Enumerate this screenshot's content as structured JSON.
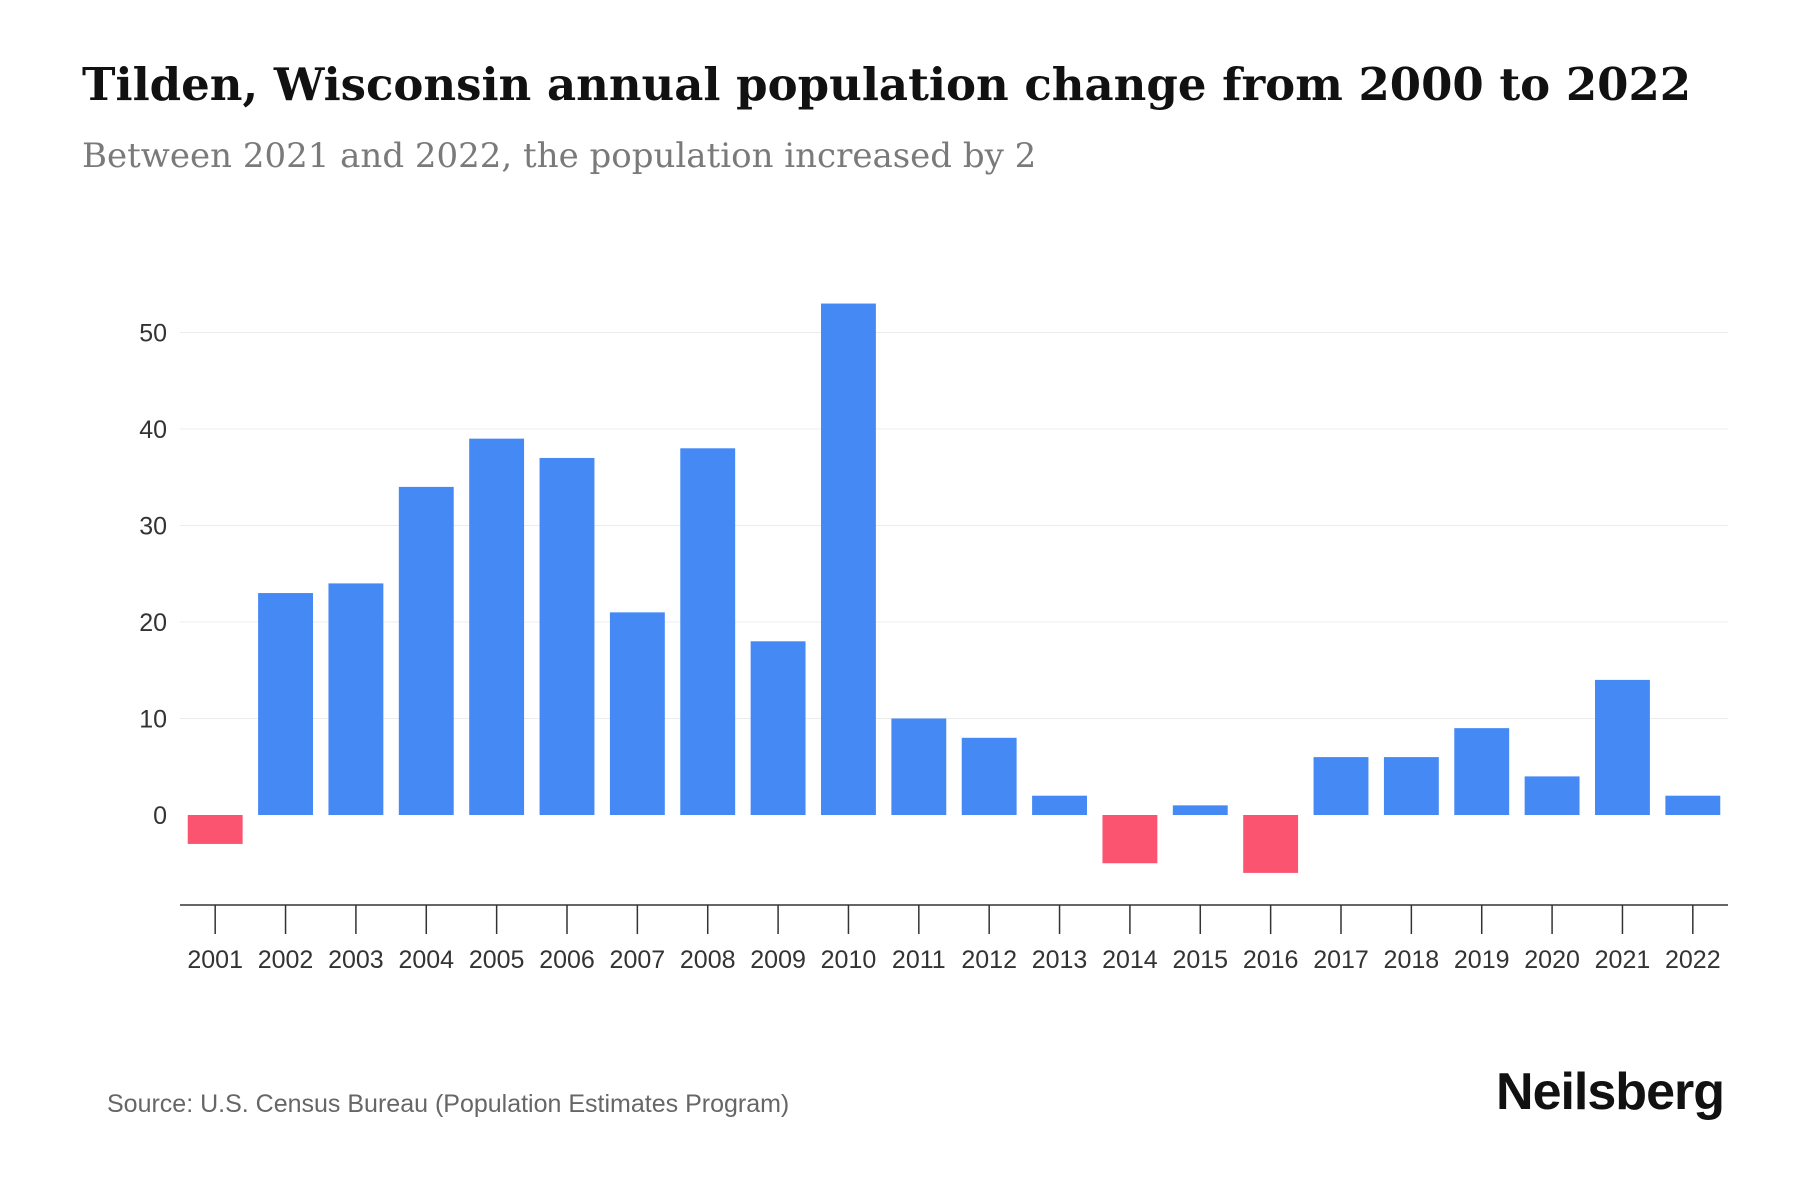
{
  "chart_data": {
    "type": "bar",
    "title": "Tilden, Wisconsin annual population change from 2000 to 2022",
    "subtitle": "Between 2021 and 2022, the population increased by 2",
    "categories": [
      "2001",
      "2002",
      "2003",
      "2004",
      "2005",
      "2006",
      "2007",
      "2008",
      "2009",
      "2010",
      "2011",
      "2012",
      "2013",
      "2014",
      "2015",
      "2016",
      "2017",
      "2018",
      "2019",
      "2020",
      "2021",
      "2022"
    ],
    "values": [
      -3,
      23,
      24,
      34,
      39,
      37,
      21,
      38,
      18,
      53,
      10,
      8,
      2,
      -5,
      1,
      -6,
      6,
      6,
      9,
      4,
      14,
      2
    ],
    "yticks": [
      "0",
      "10",
      "20",
      "30",
      "40",
      "50"
    ],
    "ylim": [
      -9,
      55
    ],
    "xlabel": "",
    "ylabel": "",
    "grid": true,
    "colors": {
      "positive": "#4589f5",
      "negative": "#fb5470"
    }
  },
  "footer": {
    "source": "Source: U.S. Census Bureau (Population Estimates Program)",
    "brand": "Neilsberg"
  }
}
